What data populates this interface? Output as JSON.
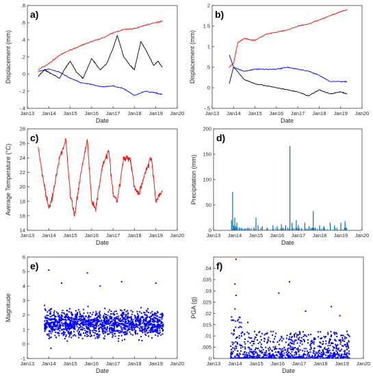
{
  "chart_data": [
    {
      "panel": "a)",
      "type": "line",
      "xlabel": "Date",
      "ylabel": "Displacement (mm)",
      "ylim": [
        -0.4,
        0.8
      ],
      "yticks": [
        -0.4,
        -0.2,
        0,
        0.2,
        0.4,
        0.6,
        0.8
      ],
      "xlim": [
        2013,
        2020
      ],
      "xticklabels": [
        "Jan13",
        "Jan14",
        "Jan15",
        "Jan16",
        "Jan17",
        "Jan18",
        "Jan19",
        "Jan20"
      ],
      "series": [
        {
          "color": "#ff0000",
          "x": [
            2013.5,
            2014.0,
            2014.5,
            2015.0,
            2015.5,
            2016.0,
            2016.5,
            2017.0,
            2017.5,
            2018.0,
            2018.5,
            2019.0,
            2019.3
          ],
          "y": [
            0.05,
            0.12,
            0.22,
            0.28,
            0.33,
            0.38,
            0.42,
            0.48,
            0.52,
            0.53,
            0.57,
            0.6,
            0.62
          ]
        },
        {
          "color": "#000000",
          "x": [
            2013.5,
            2013.8,
            2014.0,
            2014.5,
            2014.8,
            2015.0,
            2015.3,
            2015.6,
            2016.0,
            2016.4,
            2016.7,
            2017.0,
            2017.2,
            2017.5,
            2017.8,
            2018.0,
            2018.3,
            2018.6,
            2018.9,
            2019.1,
            2019.3
          ],
          "y": [
            -0.03,
            0.05,
            0.02,
            -0.05,
            0.08,
            0.15,
            0.02,
            -0.05,
            0.18,
            0.05,
            0.12,
            0.3,
            0.45,
            0.2,
            0.1,
            0.05,
            0.38,
            0.25,
            0.1,
            0.15,
            0.08
          ]
        },
        {
          "color": "#0000ff",
          "x": [
            2013.5,
            2014.0,
            2014.5,
            2015.0,
            2015.5,
            2016.0,
            2016.5,
            2017.0,
            2017.5,
            2018.0,
            2018.5,
            2019.0,
            2019.3
          ],
          "y": [
            0.03,
            0.06,
            0.02,
            -0.05,
            -0.1,
            -0.12,
            -0.15,
            -0.14,
            -0.17,
            -0.25,
            -0.2,
            -0.22,
            -0.24
          ]
        }
      ]
    },
    {
      "panel": "b)",
      "type": "line",
      "xlabel": "Date",
      "ylabel": "Displacement (mm)",
      "ylim": [
        -0.5,
        2
      ],
      "yticks": [
        -0.5,
        0,
        0.5,
        1,
        1.5,
        2
      ],
      "xlim": [
        2013,
        2020
      ],
      "xticklabels": [
        "Jan13",
        "Jan14",
        "Jan15",
        "Jan16",
        "Jan17",
        "Jan18",
        "Jan19",
        "Jan20"
      ],
      "series": [
        {
          "color": "#ff0000",
          "x": [
            2013.8,
            2014.0,
            2014.2,
            2014.5,
            2015.0,
            2015.5,
            2016.0,
            2016.5,
            2017.0,
            2017.5,
            2018.0,
            2018.5,
            2019.0,
            2019.3
          ],
          "y": [
            0.5,
            0.6,
            1.1,
            1.2,
            1.15,
            1.3,
            1.35,
            1.4,
            1.5,
            1.55,
            1.65,
            1.75,
            1.85,
            1.9
          ]
        },
        {
          "color": "#000000",
          "x": [
            2013.8,
            2014.0,
            2014.5,
            2015.0,
            2015.5,
            2016.0,
            2016.5,
            2017.0,
            2017.5,
            2018.0,
            2018.5,
            2019.0,
            2019.3
          ],
          "y": [
            0.1,
            0.5,
            0.2,
            0.1,
            0.05,
            0.0,
            -0.05,
            -0.1,
            -0.2,
            -0.05,
            -0.15,
            -0.1,
            -0.15
          ]
        },
        {
          "color": "#0000ff",
          "x": [
            2013.8,
            2014.0,
            2014.5,
            2015.0,
            2015.5,
            2016.0,
            2016.5,
            2017.0,
            2017.5,
            2018.0,
            2018.5,
            2019.0,
            2019.3
          ],
          "y": [
            0.8,
            0.5,
            0.4,
            0.45,
            0.45,
            0.45,
            0.5,
            0.45,
            0.4,
            0.3,
            0.15,
            0.15,
            0.15
          ]
        }
      ]
    },
    {
      "panel": "c)",
      "type": "line",
      "xlabel": "Date",
      "ylabel": "Average Temperature (°C)",
      "ylim": [
        14,
        28
      ],
      "yticks": [
        14,
        16,
        18,
        20,
        22,
        24,
        26,
        28
      ],
      "xlim": [
        2013,
        2020
      ],
      "xticklabels": [
        "Jan13",
        "Jan14",
        "Jan15",
        "Jan16",
        "Jan17",
        "Jan18",
        "Jan19",
        "Jan20"
      ],
      "series": [
        {
          "color": "#ff0000",
          "x": [
            2013.5,
            2013.8,
            2014.0,
            2014.2,
            2014.5,
            2014.8,
            2015.0,
            2015.2,
            2015.5,
            2015.8,
            2016.0,
            2016.2,
            2016.5,
            2016.8,
            2017.0,
            2017.2,
            2017.5,
            2017.8,
            2018.0,
            2018.2,
            2018.5,
            2018.8,
            2019.0,
            2019.3
          ],
          "y": [
            25.5,
            20,
            17,
            19,
            24,
            26.5,
            19,
            16,
            22,
            26.5,
            18,
            17,
            23,
            25,
            19,
            18,
            24,
            24,
            20,
            19,
            22,
            24,
            18,
            19.5
          ]
        }
      ]
    },
    {
      "panel": "d)",
      "type": "bar",
      "xlabel": "Date",
      "ylabel": "Precipitation (mm)",
      "ylim": [
        0,
        200
      ],
      "yticks": [
        0,
        50,
        100,
        150,
        200
      ],
      "xlim": [
        2013,
        2020
      ],
      "xticklabels": [
        "Jan13",
        "Jan14",
        "Jan15",
        "Jan16",
        "Jan17",
        "Jan18",
        "Jan19",
        "Jan20"
      ],
      "color": "#0072bd",
      "x": [
        2013.85,
        2013.9,
        2013.95,
        2014.0,
        2014.05,
        2014.1,
        2014.2,
        2014.3,
        2014.9,
        2015.0,
        2015.1,
        2015.3,
        2015.8,
        2016.0,
        2016.2,
        2016.4,
        2016.6,
        2016.7,
        2016.9,
        2017.0,
        2017.3,
        2017.5,
        2017.7,
        2018.0,
        2018.2,
        2018.5,
        2018.7,
        2019.0,
        2019.2
      ],
      "values": [
        20,
        76,
        10,
        25,
        8,
        15,
        5,
        4,
        6,
        25,
        10,
        8,
        10,
        8,
        12,
        10,
        166,
        15,
        20,
        10,
        15,
        8,
        38,
        10,
        8,
        15,
        10,
        15,
        18
      ]
    },
    {
      "panel": "e)",
      "type": "scatter",
      "xlabel": "Date",
      "ylabel": "Magnitude",
      "ylim": [
        -1,
        6
      ],
      "yticks": [
        -1,
        0,
        1,
        2,
        3,
        4,
        5,
        6
      ],
      "xlim": [
        2013,
        2020
      ],
      "xticklabels": [
        "Jan13",
        "Jan14",
        "Jan15",
        "Jan16",
        "Jan17",
        "Jan18",
        "Jan19",
        "Jan20"
      ],
      "color": "#0000ff",
      "x_range": [
        2013.8,
        2019.35
      ],
      "band_mean": 1.4,
      "band_min": 0.2,
      "band_max": 3.4,
      "outliers": [
        [
          2014.0,
          5.1
        ],
        [
          2015.8,
          4.9
        ],
        [
          2019.0,
          4.2
        ],
        [
          2014.1,
          -0.3
        ],
        [
          2017.4,
          4.3
        ],
        [
          2016.4,
          4.0
        ],
        [
          2014.6,
          4.2
        ]
      ]
    },
    {
      "panel": "f)",
      "type": "scatter",
      "xlabel": "Date",
      "ylabel": "PGA (g)",
      "ylim": [
        0,
        0.045
      ],
      "yticks": [
        0,
        0.005,
        0.01,
        0.015,
        0.02,
        0.025,
        0.03,
        0.035,
        0.04
      ],
      "xlim": [
        2013,
        2020
      ],
      "xticklabels": [
        "Jan13",
        "Jan14",
        "Jan15",
        "Jan16",
        "Jan17",
        "Jan18",
        "Jan19",
        "Jan20"
      ],
      "color": "#0000ff",
      "x_range": [
        2013.8,
        2019.35
      ],
      "outliers": [
        [
          2014.05,
          0.044
        ],
        [
          2014.0,
          0.033
        ],
        [
          2014.05,
          0.028
        ],
        [
          2016.05,
          0.029
        ],
        [
          2016.55,
          0.034
        ],
        [
          2014.0,
          0.022
        ],
        [
          2017.3,
          0.021
        ],
        [
          2018.5,
          0.023
        ],
        [
          2014.6,
          0.016
        ],
        [
          2018.9,
          0.019
        ]
      ]
    }
  ]
}
